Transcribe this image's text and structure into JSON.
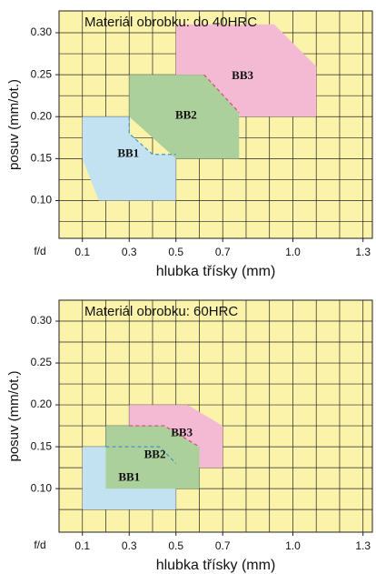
{
  "chart_data": [
    {
      "type": "region",
      "title": "Materiál obrobku: do 40HRC",
      "x_label": "hlubka třísky (mm)",
      "y_label": "posuv (mm/ot.)",
      "corner_label": "f/d",
      "xlim": [
        0,
        1.34
      ],
      "ylim": [
        0.055,
        0.326
      ],
      "xticks": [
        0.1,
        0.3,
        0.5,
        0.7,
        {
          "value": 1.0,
          "label": "1.0"
        },
        1.3
      ],
      "yticks": [
        {
          "value": 0.3,
          "label": "0.30"
        },
        0.25,
        {
          "value": 0.2,
          "label": "0.20"
        },
        0.15,
        {
          "value": 0.1,
          "label": "0.10"
        }
      ],
      "xgrid": [
        0.1,
        0.2,
        0.3,
        0.4,
        0.5,
        0.6,
        0.7,
        0.8,
        0.9,
        1.0,
        1.1,
        1.2,
        1.3
      ],
      "ygrid": [
        0.075,
        0.1,
        0.125,
        0.15,
        0.175,
        0.2,
        0.225,
        0.25,
        0.275,
        0.3
      ],
      "series": [
        {
          "name": "BB1",
          "color": "#c2e2f2",
          "x": [
            0.1,
            0.3,
            0.3,
            0.4,
            0.5,
            0.5,
            0.17,
            0.1
          ],
          "y": [
            0.2,
            0.2,
            0.18,
            0.155,
            0.155,
            0.1,
            0.1,
            0.15
          ]
        },
        {
          "name": "BB2",
          "color": "#abd09c",
          "x": [
            0.3,
            0.62,
            0.77,
            0.77,
            0.5,
            0.3
          ],
          "y": [
            0.25,
            0.25,
            0.205,
            0.15,
            0.15,
            0.2
          ]
        },
        {
          "name": "BB3",
          "color": "#f4bad4",
          "x": [
            0.5,
            0.92,
            1.1,
            1.1,
            0.77,
            0.77,
            0.62,
            0.5
          ],
          "y": [
            0.31,
            0.31,
            0.26,
            0.2,
            0.2,
            0.205,
            0.25,
            0.25
          ]
        }
      ],
      "boundaries": [
        {
          "color": "#4a90d0",
          "x": [
            0.3,
            0.3,
            0.4,
            0.5
          ],
          "y": [
            0.2,
            0.18,
            0.155,
            0.155
          ]
        },
        {
          "color": "#d0506e",
          "x": [
            0.62,
            0.77
          ],
          "y": [
            0.25,
            0.205
          ]
        }
      ]
    },
    {
      "type": "region",
      "title": "Materiál obrobku: 60HRC",
      "x_label": "hlubka třísky (mm)",
      "y_label": "posuv (mm/ot.)",
      "corner_label": "f/d",
      "xlim": [
        0,
        1.34
      ],
      "ylim": [
        0.048,
        0.325
      ],
      "xticks": [
        0.1,
        0.3,
        0.5,
        0.7,
        {
          "value": 1.0,
          "label": "1.0"
        },
        1.3
      ],
      "yticks": [
        {
          "value": 0.3,
          "label": "0.30"
        },
        0.25,
        {
          "value": 0.2,
          "label": "0.20"
        },
        0.15,
        {
          "value": 0.1,
          "label": "0.10"
        }
      ],
      "xgrid": [
        0.1,
        0.2,
        0.3,
        0.4,
        0.5,
        0.6,
        0.7,
        0.8,
        0.9,
        1.0,
        1.1,
        1.2,
        1.3
      ],
      "ygrid": [
        0.075,
        0.1,
        0.125,
        0.15,
        0.175,
        0.2,
        0.225,
        0.25,
        0.275,
        0.3
      ],
      "series": [
        {
          "name": "BB1",
          "color": "#c2e2f2",
          "x": [
            0.1,
            0.5,
            0.5,
            0.1
          ],
          "y": [
            0.15,
            0.15,
            0.075,
            0.075
          ]
        },
        {
          "name": "BB2",
          "color": "#abd09c",
          "x": [
            0.2,
            0.45,
            0.6,
            0.6,
            0.2
          ],
          "y": [
            0.175,
            0.175,
            0.15,
            0.1,
            0.1
          ]
        },
        {
          "name": "BB3",
          "color": "#f4bad4",
          "x": [
            0.3,
            0.55,
            0.7,
            0.7,
            0.6,
            0.6,
            0.45,
            0.3
          ],
          "y": [
            0.2,
            0.2,
            0.175,
            0.125,
            0.125,
            0.15,
            0.175,
            0.175
          ]
        }
      ],
      "boundaries": [
        {
          "color": "#4a90d0",
          "x": [
            0.2,
            0.43,
            0.5
          ],
          "y": [
            0.15,
            0.15,
            0.13
          ]
        },
        {
          "color": "#d0506e",
          "x": [
            0.3,
            0.45,
            0.6
          ],
          "y": [
            0.175,
            0.175,
            0.15
          ]
        }
      ]
    }
  ]
}
